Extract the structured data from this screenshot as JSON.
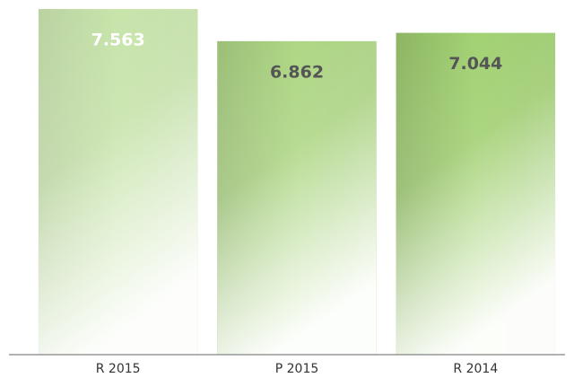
{
  "chart_data": {
    "type": "bar",
    "categories": [
      "R 2015",
      "P 2015",
      "R 2014"
    ],
    "values": [
      7.563,
      6.862,
      7.044
    ],
    "color": "#7dbf3a",
    "ylim": [
      0,
      8
    ]
  }
}
